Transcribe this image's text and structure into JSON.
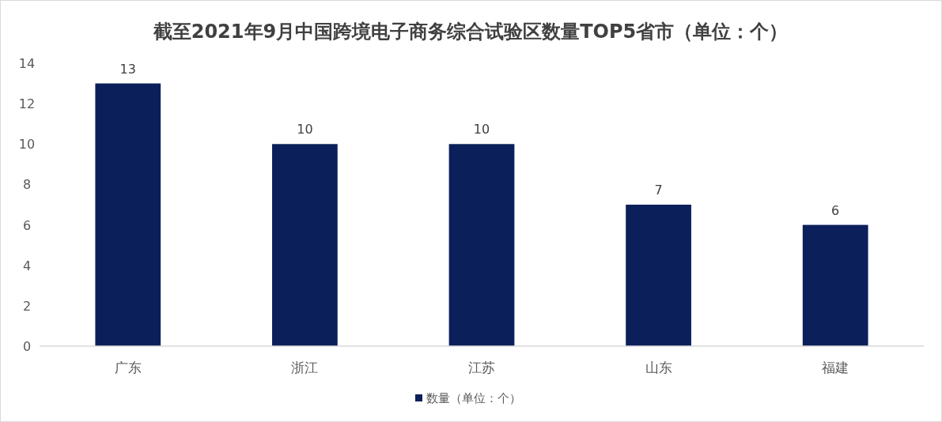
{
  "chart_data": {
    "type": "bar",
    "title": "截至2021年9月中国跨境电子商务综合试验区数量TOP5省市（单位：个）",
    "categories": [
      "广东",
      "浙江",
      "江苏",
      "山东",
      "福建"
    ],
    "series": [
      {
        "name": "数量（单位：个）",
        "color": "#0b1f5a",
        "values": [
          13,
          10,
          10,
          7,
          6
        ]
      }
    ],
    "ylim": [
      0,
      14
    ],
    "yticks": [
      0,
      2,
      4,
      6,
      8,
      10,
      12,
      14
    ],
    "data_labels": true,
    "legend": "bottom",
    "grid": false
  }
}
